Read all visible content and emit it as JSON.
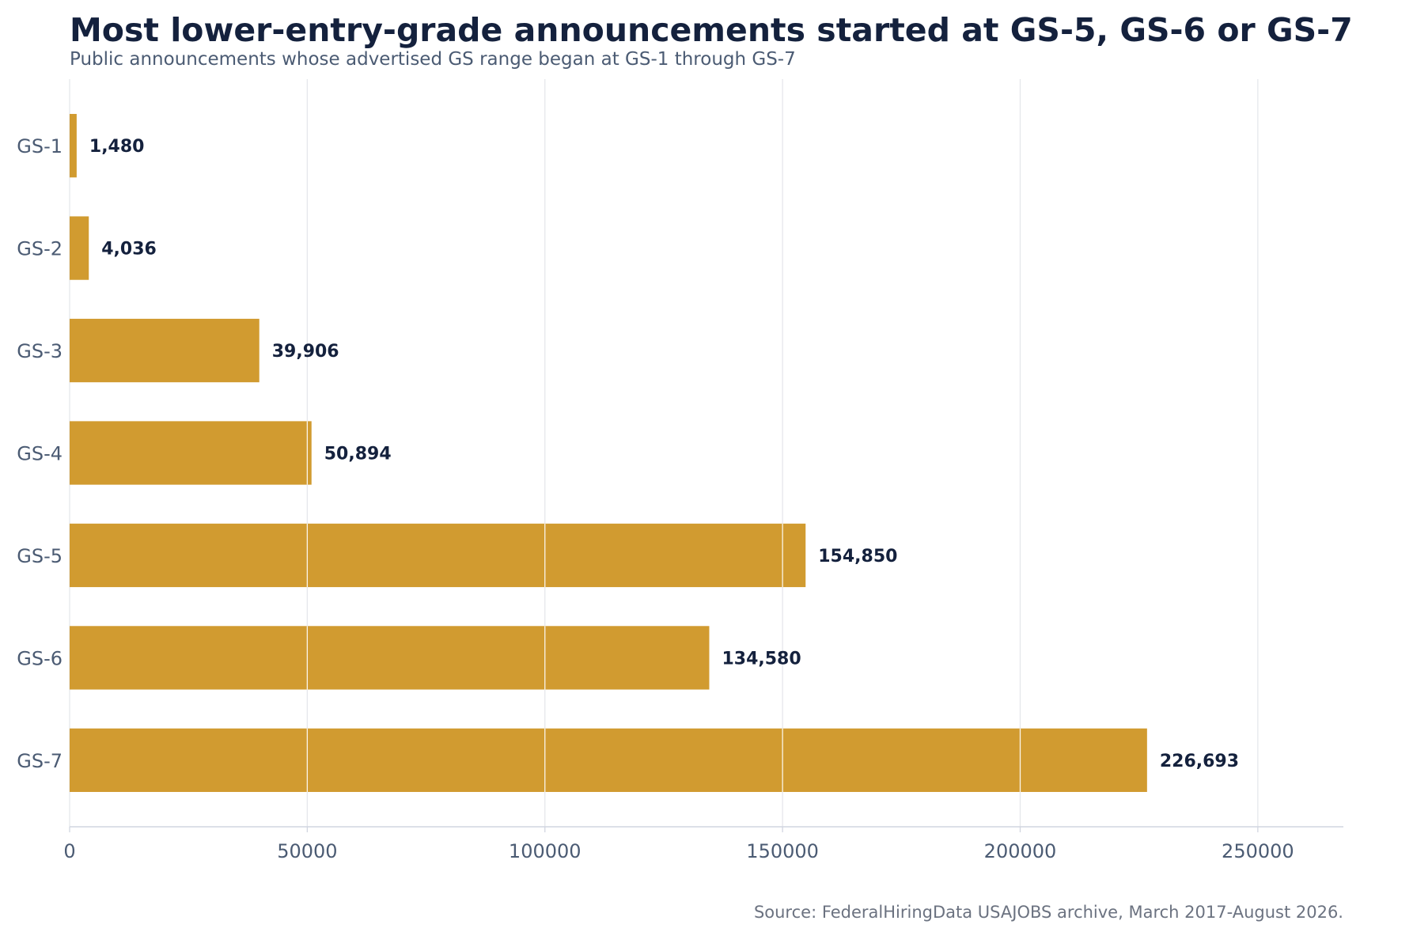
{
  "chart_data": {
    "type": "bar",
    "orientation": "horizontal",
    "title": "Most lower-entry-grade announcements started at GS-5, GS-6 or GS-7",
    "subtitle": "Public announcements whose advertised GS range began at GS-1 through GS-7",
    "source": "Source: FederalHiringData USAJOBS archive, March 2017-August 2026.",
    "categories": [
      "GS-1",
      "GS-2",
      "GS-3",
      "GS-4",
      "GS-5",
      "GS-6",
      "GS-7"
    ],
    "values": [
      1480,
      4036,
      39906,
      50894,
      154850,
      134580,
      226693
    ],
    "value_labels": [
      "1,480",
      "4,036",
      "39,906",
      "50,894",
      "154,850",
      "134,580",
      "226,693"
    ],
    "x_ticks": [
      0,
      50000,
      100000,
      150000,
      200000,
      250000
    ],
    "x_tick_labels": [
      "0",
      "50000",
      "100000",
      "150000",
      "200000",
      "250000"
    ],
    "xlim": [
      0,
      268000
    ],
    "xlabel": "",
    "ylabel": "",
    "grid": "vertical",
    "legend": "none",
    "colors": {
      "bar": "#d19b30",
      "grid": "#e5e7eb",
      "axis": "#d1d5e0"
    }
  }
}
